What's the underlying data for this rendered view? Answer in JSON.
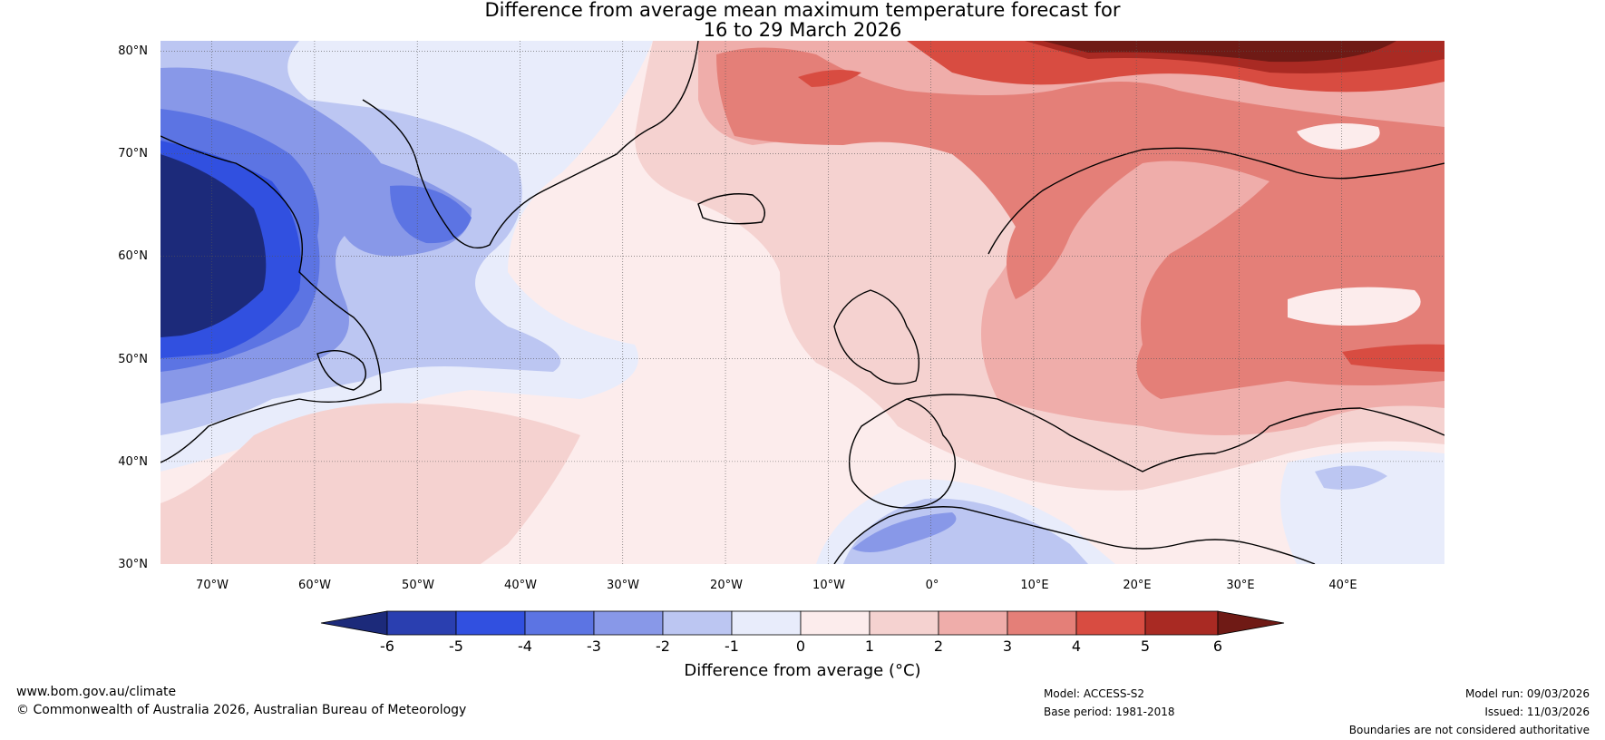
{
  "title": {
    "line1": "Difference from average mean maximum temperature forecast for",
    "line2": "16 to 29 March 2026"
  },
  "map": {
    "lat_labels": [
      "80°N",
      "70°N",
      "60°N",
      "50°N",
      "40°N",
      "30°N"
    ],
    "lon_labels": [
      "70°W",
      "60°W",
      "50°W",
      "40°W",
      "30°W",
      "20°W",
      "10°W",
      "0°",
      "10°E",
      "20°E",
      "30°E",
      "40°E"
    ],
    "lat_range": [
      30,
      81
    ],
    "lon_range": [
      -75,
      50
    ]
  },
  "colorbar": {
    "label": "Difference from average (°C)",
    "ticks": [
      "-6",
      "-5",
      "-4",
      "-3",
      "-2",
      "-1",
      "0",
      "1",
      "2",
      "3",
      "4",
      "5",
      "6"
    ],
    "colors": [
      "#1c2a7a",
      "#2a3fb0",
      "#3150e0",
      "#5c74e3",
      "#8898e8",
      "#bcc6f2",
      "#e8ecfb",
      "#fcecec",
      "#f5d2d0",
      "#efadaa",
      "#e47f78",
      "#d84c41",
      "#a92a23",
      "#6f1a15"
    ]
  },
  "footer": {
    "url": "www.bom.gov.au/climate",
    "copyright": "© Commonwealth of Australia 2026, Australian Bureau of Meteorology",
    "model": "Model: ACCESS-S2",
    "base_period": "Base period: 1981-2018",
    "model_run": "Model run: 09/03/2026",
    "issued": "Issued: 11/03/2026",
    "disclaimer": "Boundaries are not considered authoritative"
  }
}
